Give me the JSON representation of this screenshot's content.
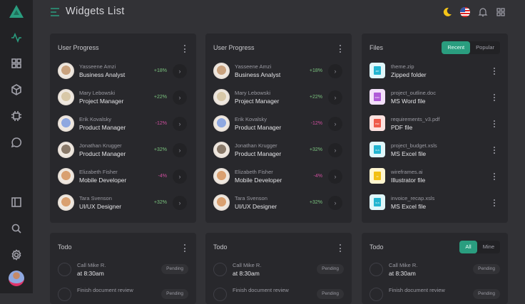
{
  "header": {
    "title": "Widgets List"
  },
  "colors": {
    "accent": "#2a9d7f",
    "positive": "#7bc47f",
    "negative": "#d04fa0",
    "sidebar": "#222225",
    "card": "#28282c",
    "background": "#323236"
  },
  "sidebar": {
    "items": [
      {
        "icon": "activity-icon",
        "active": true
      },
      {
        "icon": "grid-icon"
      },
      {
        "icon": "cube-icon"
      },
      {
        "icon": "chip-icon"
      },
      {
        "icon": "chat-icon"
      },
      {
        "icon": "sidebar-panel-icon"
      },
      {
        "icon": "search-icon"
      },
      {
        "icon": "gear-icon"
      }
    ]
  },
  "header_icons": [
    "moon-icon",
    "us-flag-icon",
    "bell-icon",
    "apps-grid-icon"
  ],
  "user_progress": {
    "title": "User Progress",
    "users": [
      {
        "name": "Yasseene Amzi",
        "role": "Business Analyst",
        "change": "+18%",
        "trend": "up",
        "avatar_color": "#c9a27e"
      },
      {
        "name": "Mary Lebowski",
        "role": "Project Manager",
        "change": "+22%",
        "trend": "up",
        "avatar_color": "#d8c8a8"
      },
      {
        "name": "Erik Kovalsky",
        "role": "Product Manager",
        "change": "-12%",
        "trend": "down",
        "avatar_color": "#8fa8e0"
      },
      {
        "name": "Jonathan Krugger",
        "role": "Product Manager",
        "change": "+32%",
        "trend": "up",
        "avatar_color": "#8a7a6a"
      },
      {
        "name": "Elizabeth Fisher",
        "role": "Mobile Developer",
        "change": "-4%",
        "trend": "down",
        "avatar_color": "#d9a070"
      },
      {
        "name": "Tara Svenson",
        "role": "UI/UX Designer",
        "change": "+32%",
        "trend": "up",
        "avatar_color": "#d9a070"
      }
    ]
  },
  "files": {
    "title": "Files",
    "tabs": [
      "Recent",
      "Popular"
    ],
    "active_tab": "Recent",
    "items": [
      {
        "filename": "theme.zip",
        "type": "Zipped folder",
        "icon": "zip-folder-icon",
        "bg": "#e0f7fa",
        "fg": "#22b5d0",
        "tag": "ZIP"
      },
      {
        "filename": "project_outline.doc",
        "type": "MS Word file",
        "icon": "word-file-icon",
        "bg": "#f3e0fa",
        "fg": "#b05ad8",
        "tag": "DOC"
      },
      {
        "filename": "requirements_v3.pdf",
        "type": "PDF file",
        "icon": "pdf-file-icon",
        "bg": "#fde2e0",
        "fg": "#ef5a4a",
        "tag": "PDF"
      },
      {
        "filename": "project_budget.xsls",
        "type": "MS Excel file",
        "icon": "excel-file-icon",
        "bg": "#e0f7fa",
        "fg": "#22b5d0",
        "tag": "XLS"
      },
      {
        "filename": "wireframes.ai",
        "type": "Illustrator file",
        "icon": "illustrator-file-icon",
        "bg": "#fff6d0",
        "fg": "#f2c014",
        "tag": "AI"
      },
      {
        "filename": "invoice_recap.xsls",
        "type": "MS Excel file",
        "icon": "excel-file-icon",
        "bg": "#e0f7fa",
        "fg": "#22b5d0",
        "tag": "XLS"
      }
    ]
  },
  "todo": {
    "title": "Todo",
    "tabs": [
      "All",
      "Mine"
    ],
    "active_tab": "All",
    "items": [
      {
        "task": "Call Mike R.",
        "time": "at 8:30am",
        "status": "Pending"
      },
      {
        "task": "Finish document review",
        "time": "",
        "status": "Pending"
      }
    ]
  }
}
